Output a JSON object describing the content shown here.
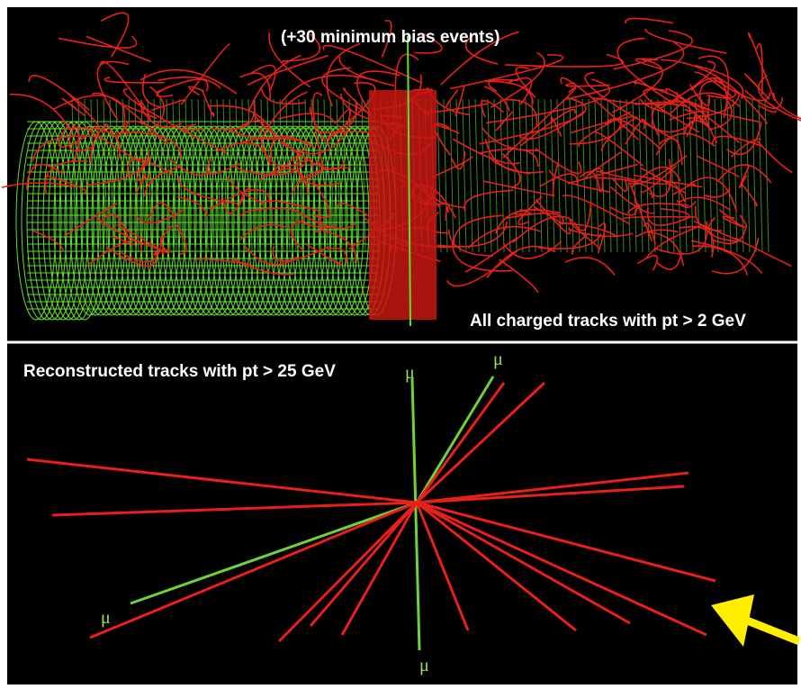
{
  "top_panel": {
    "annotation": "(+30 minimum bias events)",
    "caption": "All charged tracks with pt > 2 GeV"
  },
  "bottom_panel": {
    "caption": "Reconstructed tracks with pt > 25 GeV",
    "muon_labels": [
      "μ",
      "μ",
      "μ",
      "μ"
    ]
  }
}
